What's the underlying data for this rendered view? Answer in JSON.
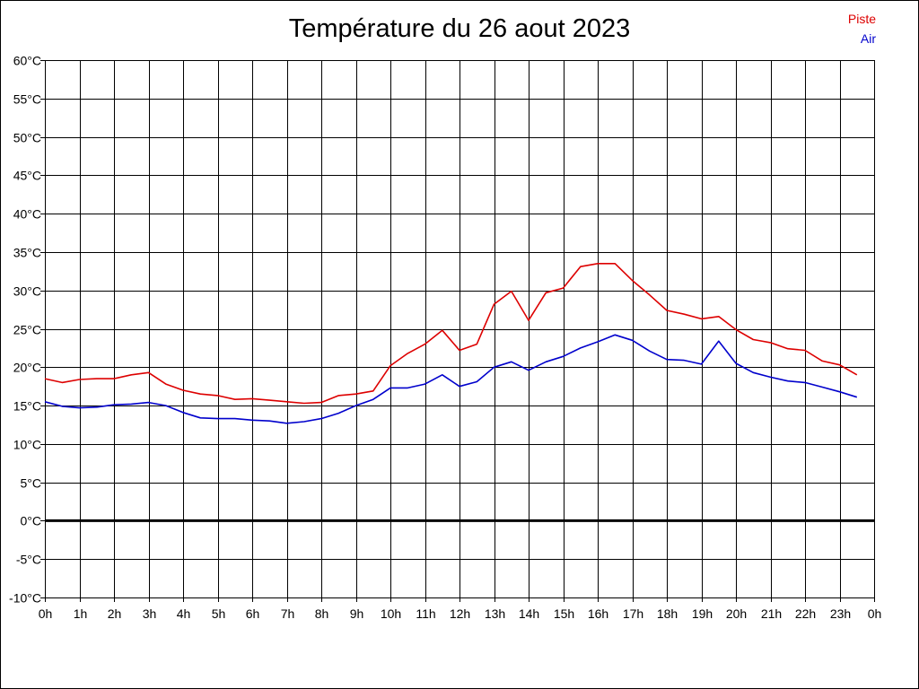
{
  "chart_data": {
    "type": "line",
    "title": "Température du 26 aout 2023",
    "xlabel": "",
    "ylabel": "",
    "x_ticks": [
      "0h",
      "1h",
      "2h",
      "3h",
      "4h",
      "5h",
      "6h",
      "7h",
      "8h",
      "9h",
      "10h",
      "11h",
      "12h",
      "13h",
      "14h",
      "15h",
      "16h",
      "17h",
      "18h",
      "19h",
      "20h",
      "21h",
      "22h",
      "23h",
      "0h"
    ],
    "y_ticks": [
      "60°C",
      "55°C",
      "50°C",
      "45°C",
      "40°C",
      "35°C",
      "30°C",
      "25°C",
      "20°C",
      "15°C",
      "10°C",
      "5°C",
      "0°C",
      "-5°C",
      "-10°C"
    ],
    "xlim": [
      0,
      24
    ],
    "ylim": [
      -10,
      60
    ],
    "grid": true,
    "legend_position": "top-right",
    "x": [
      0,
      0.5,
      1,
      1.5,
      2,
      2.5,
      3,
      3.5,
      4,
      4.5,
      5,
      5.5,
      6,
      6.5,
      7,
      7.5,
      8,
      8.5,
      9,
      9.5,
      10,
      10.5,
      11,
      11.5,
      12,
      12.5,
      13,
      13.5,
      14,
      14.5,
      15,
      15.5,
      16,
      16.5,
      17,
      17.5,
      18,
      18.5,
      19,
      19.5,
      20,
      20.5,
      21,
      21.5,
      22,
      22.5,
      23,
      23.5
    ],
    "series": [
      {
        "name": "Piste",
        "color": "#dd0000",
        "values": [
          18.5,
          18.0,
          18.4,
          18.5,
          18.5,
          19.0,
          19.3,
          17.8,
          17.0,
          16.5,
          16.3,
          15.8,
          15.9,
          15.7,
          15.5,
          15.3,
          15.4,
          16.3,
          16.5,
          16.9,
          20.2,
          21.8,
          23.0,
          24.8,
          22.2,
          23.0,
          28.2,
          29.9,
          26.1,
          29.7,
          30.3,
          33.1,
          33.5,
          33.5,
          31.3,
          29.4,
          27.4,
          26.9,
          26.3,
          26.6,
          24.9,
          23.6,
          23.2,
          22.4,
          22.2,
          20.8,
          20.3,
          19.0
        ]
      },
      {
        "name": "Air",
        "color": "#0000cc",
        "values": [
          15.5,
          14.9,
          14.7,
          14.8,
          15.1,
          15.2,
          15.4,
          15.0,
          14.1,
          13.4,
          13.3,
          13.3,
          13.1,
          13.0,
          12.7,
          12.9,
          13.3,
          14.0,
          15.0,
          15.8,
          17.3,
          17.3,
          17.8,
          19.0,
          17.5,
          18.1,
          20.0,
          20.7,
          19.6,
          20.7,
          21.4,
          22.5,
          23.3,
          24.2,
          23.5,
          22.1,
          21.0,
          20.9,
          20.4,
          23.4,
          20.5,
          19.3,
          18.7,
          18.2,
          18.0,
          17.4,
          16.8,
          16.1
        ]
      }
    ],
    "zero_line_color": "#000000"
  }
}
